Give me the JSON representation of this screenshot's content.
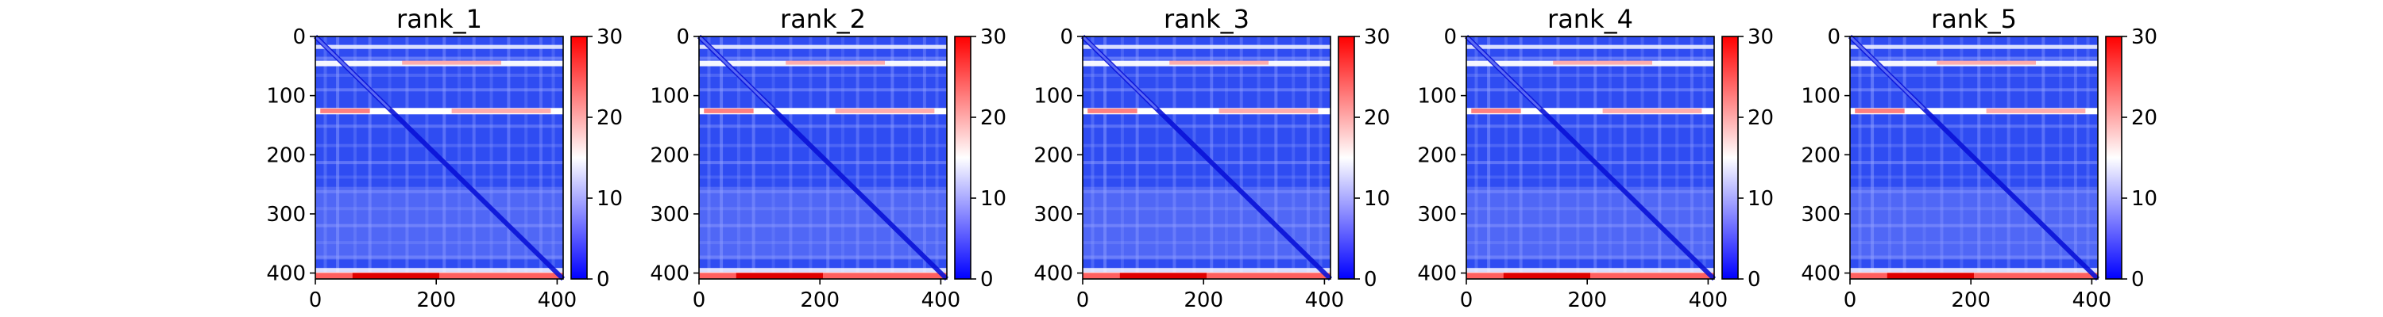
{
  "chart_data": [
    {
      "type": "heatmap",
      "title": "rank_1",
      "x_ticks": [
        "0",
        "200",
        "400"
      ],
      "y_ticks": [
        "0",
        "100",
        "200",
        "300",
        "400"
      ],
      "xlim": [
        0,
        410
      ],
      "ylim": [
        410,
        0
      ],
      "colorbar": {
        "ticks": [
          "0",
          "10",
          "20",
          "30"
        ],
        "range": [
          0,
          30
        ],
        "colormap": "bwr"
      }
    },
    {
      "type": "heatmap",
      "title": "rank_2",
      "x_ticks": [
        "0",
        "200",
        "400"
      ],
      "y_ticks": [
        "0",
        "100",
        "200",
        "300",
        "400"
      ],
      "xlim": [
        0,
        410
      ],
      "ylim": [
        410,
        0
      ],
      "colorbar": {
        "ticks": [
          "0",
          "10",
          "20",
          "30"
        ],
        "range": [
          0,
          30
        ],
        "colormap": "bwr"
      }
    },
    {
      "type": "heatmap",
      "title": "rank_3",
      "x_ticks": [
        "0",
        "200",
        "400"
      ],
      "y_ticks": [
        "0",
        "100",
        "200",
        "300",
        "400"
      ],
      "xlim": [
        0,
        410
      ],
      "ylim": [
        410,
        0
      ],
      "colorbar": {
        "ticks": [
          "0",
          "10",
          "20",
          "30"
        ],
        "range": [
          0,
          30
        ],
        "colormap": "bwr"
      }
    },
    {
      "type": "heatmap",
      "title": "rank_4",
      "x_ticks": [
        "0",
        "200",
        "400"
      ],
      "y_ticks": [
        "0",
        "100",
        "200",
        "300",
        "400"
      ],
      "xlim": [
        0,
        410
      ],
      "ylim": [
        410,
        0
      ],
      "colorbar": {
        "ticks": [
          "0",
          "10",
          "20",
          "30"
        ],
        "range": [
          0,
          30
        ],
        "colormap": "bwr"
      }
    },
    {
      "type": "heatmap",
      "title": "rank_5",
      "x_ticks": [
        "0",
        "200",
        "400"
      ],
      "y_ticks": [
        "0",
        "100",
        "200",
        "300",
        "400"
      ],
      "xlim": [
        0,
        410
      ],
      "ylim": [
        410,
        0
      ],
      "colorbar": {
        "ticks": [
          "0",
          "10",
          "20",
          "30"
        ],
        "range": [
          0,
          30
        ],
        "colormap": "bwr"
      }
    }
  ],
  "colors": {
    "low": "#0000ff",
    "mid": "#ffffff",
    "high": "#ff0000",
    "axis": "#000000"
  }
}
